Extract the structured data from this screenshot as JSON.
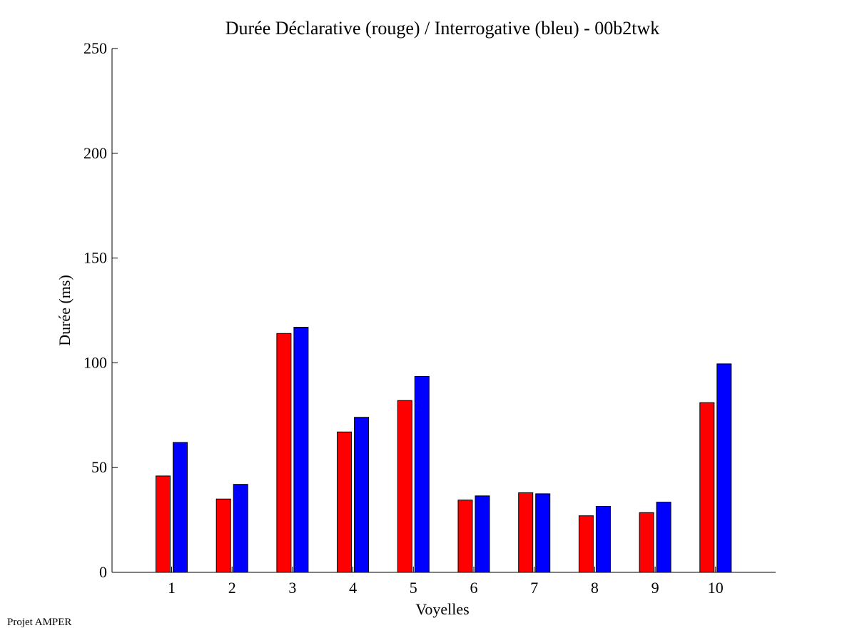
{
  "footer": "Projet AMPER",
  "chart_data": {
    "type": "bar",
    "title": "Durée Déclarative (rouge) / Interrogative (bleu) - 00b2twk",
    "xlabel": "Voyelles",
    "ylabel": "Durée (ms)",
    "ylim": [
      0,
      250
    ],
    "yticks": [
      0,
      50,
      100,
      150,
      200,
      250
    ],
    "categories": [
      "1",
      "2",
      "3",
      "4",
      "5",
      "6",
      "7",
      "8",
      "9",
      "10"
    ],
    "grid": false,
    "series": [
      {
        "color": "#ff0000",
        "values": [
          46,
          35,
          114,
          67,
          82,
          34.5,
          38,
          27,
          28.5,
          81
        ]
      },
      {
        "color": "#0000ff",
        "values": [
          62,
          42,
          117,
          74,
          93.5,
          36.5,
          37.5,
          31.5,
          33.5,
          99.5
        ]
      }
    ]
  }
}
